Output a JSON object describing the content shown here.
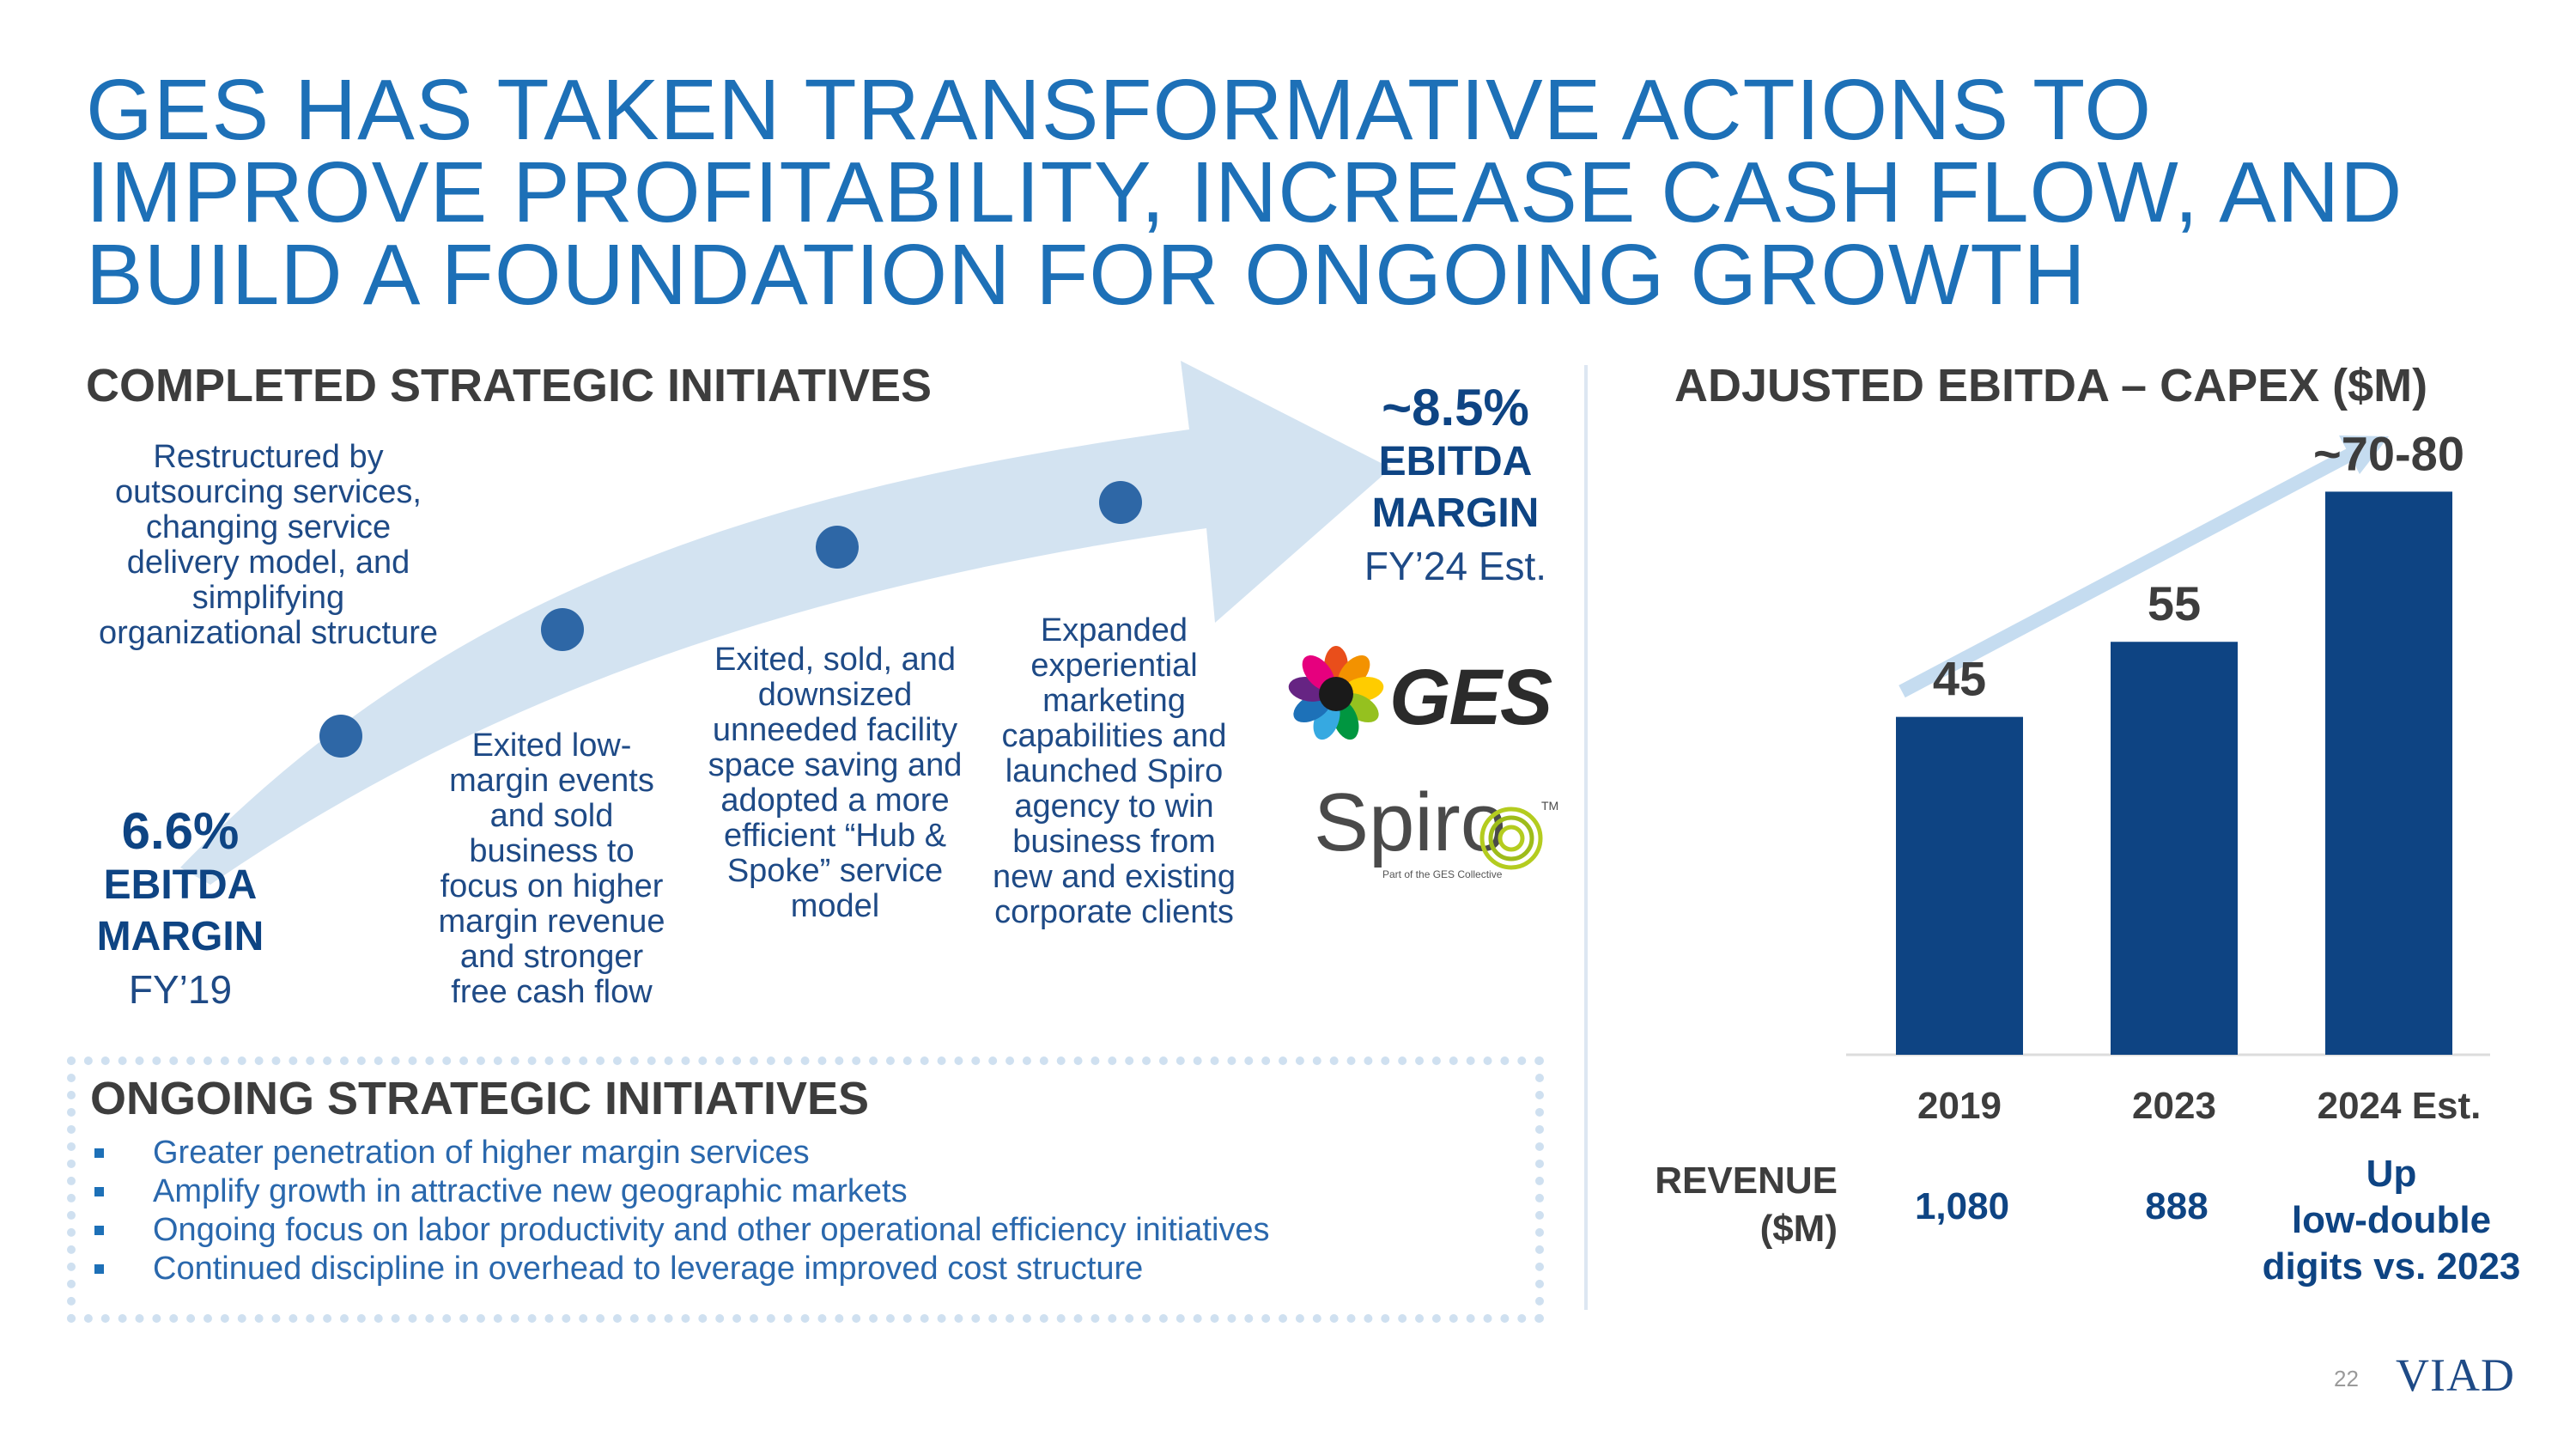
{
  "title_lines": [
    "GES HAS TAKEN TRANSFORMATIVE ACTIONS TO",
    "IMPROVE PROFITABILITY, INCREASE CASH FLOW, AND",
    "BUILD A FOUNDATION FOR ONGOING GROWTH"
  ],
  "completed": {
    "heading": "COMPLETED STRATEGIC INITIATIVES",
    "start_margin": {
      "pct": "6.6%",
      "l1": "EBITDA",
      "l2": "MARGIN",
      "sub": "FY’19"
    },
    "end_margin": {
      "pct": "~8.5%",
      "l1": "EBITDA",
      "l2": "MARGIN",
      "sub": "FY’24 Est."
    },
    "steps": [
      "Restructured by outsourcing services, changing service delivery model, and simplifying organizational structure",
      "Exited low-margin events and sold business to focus on higher margin revenue and stronger free cash flow",
      "Exited, sold, and downsized unneeded facility space saving and adopted a more efficient “Hub & Spoke” service model",
      "Expanded experiential marketing capabilities and launched Spiro agency to win business from new and existing corporate clients"
    ]
  },
  "logos": {
    "ges": "GES",
    "spiro": "Spiro",
    "spiro_tm": "TM",
    "spiro_tag": "Part of the GES Collective"
  },
  "ongoing": {
    "heading": "ONGOING STRATEGIC INITIATIVES",
    "items": [
      "Greater penetration of higher margin services",
      "Amplify growth in attractive new geographic markets",
      "Ongoing focus on labor productivity and other operational efficiency initiatives",
      "Continued discipline in overhead to leverage improved cost structure"
    ]
  },
  "chart_data": {
    "type": "bar",
    "title": "ADJUSTED EBITDA – CAPEX ($M)",
    "categories": [
      "2019",
      "2023",
      "2024 Est."
    ],
    "values": [
      45,
      55,
      75
    ],
    "value_labels": [
      "45",
      "55",
      "~70-80"
    ],
    "ylim": [
      0,
      85
    ],
    "bar_color": "#0e4483"
  },
  "revenue": {
    "label_l1": "REVENUE",
    "label_l2": "($M)",
    "values": [
      "1,080",
      "888"
    ],
    "est_lines": [
      "Up",
      "low-double",
      "digits vs. 2023"
    ]
  },
  "footer": {
    "page": "22",
    "brand": "VIAD"
  },
  "colors": {
    "title_blue": "#1d70b7",
    "navy": "#0e4483",
    "arrow": "#d3e3f1",
    "dot": "#2e67a6"
  }
}
